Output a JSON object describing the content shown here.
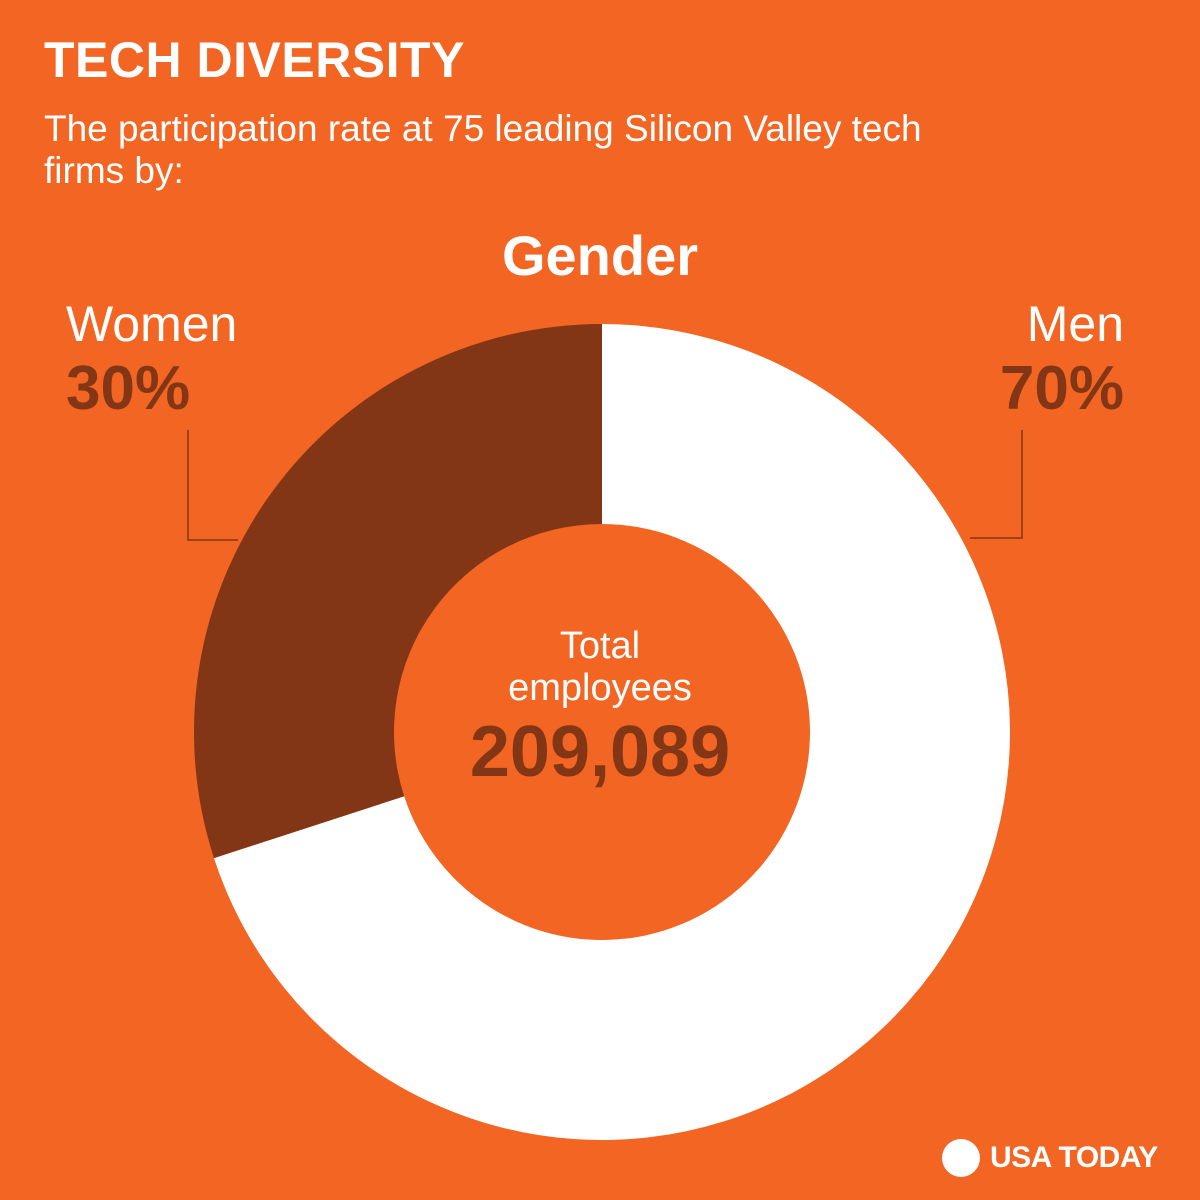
{
  "header": {
    "title": "TECH DIVERSITY",
    "subtitle": "The participation rate at 75 leading Silicon Valley tech firms by:"
  },
  "chart_data": {
    "type": "pie",
    "title": "Gender",
    "categories": [
      "Women",
      "Men"
    ],
    "values": [
      30,
      70
    ],
    "value_labels": [
      "30%",
      "70%"
    ],
    "colors": [
      "#823615",
      "#ffffff"
    ],
    "center": {
      "line1": "Total",
      "line2": "employees",
      "value": "209,089"
    }
  },
  "colors": {
    "background": "#f26522",
    "women": "#823615",
    "men": "#ffffff",
    "accent_text": "#823615"
  },
  "footer": {
    "logo_text": "USA TODAY"
  }
}
